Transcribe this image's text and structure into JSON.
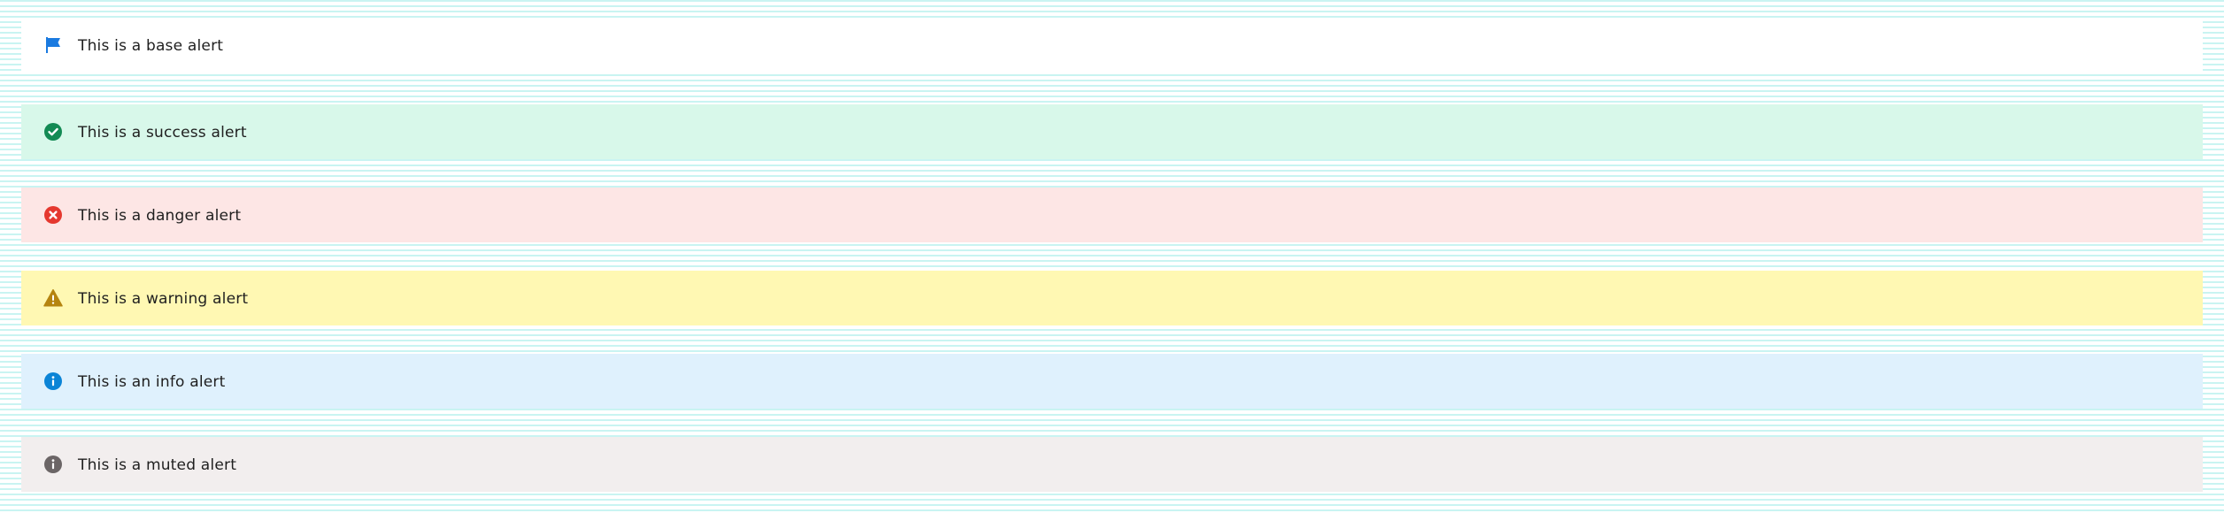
{
  "alerts": [
    {
      "variant": "base",
      "text": "This is a base alert",
      "icon": "flag-icon",
      "background": "#ffffff",
      "icon_color": "#1a7ae0"
    },
    {
      "variant": "success",
      "text": "This is a success alert",
      "icon": "check-circle-icon",
      "background": "#d8f8ea",
      "icon_color": "#138a54"
    },
    {
      "variant": "danger",
      "text": "This is a danger alert",
      "icon": "x-circle-icon",
      "background": "#fde6e5",
      "icon_color": "#e5382f"
    },
    {
      "variant": "warning",
      "text": "This is a warning alert",
      "icon": "warning-triangle-icon",
      "background": "#fff8b3",
      "icon_color": "#b58410"
    },
    {
      "variant": "info",
      "text": "This is an info alert",
      "icon": "info-circle-icon",
      "background": "#dff1fd",
      "icon_color": "#0b84d6"
    },
    {
      "variant": "muted",
      "text": "This is a muted alert",
      "icon": "info-circle-icon",
      "background": "#f2eeee",
      "icon_color": "#6b6566"
    }
  ]
}
